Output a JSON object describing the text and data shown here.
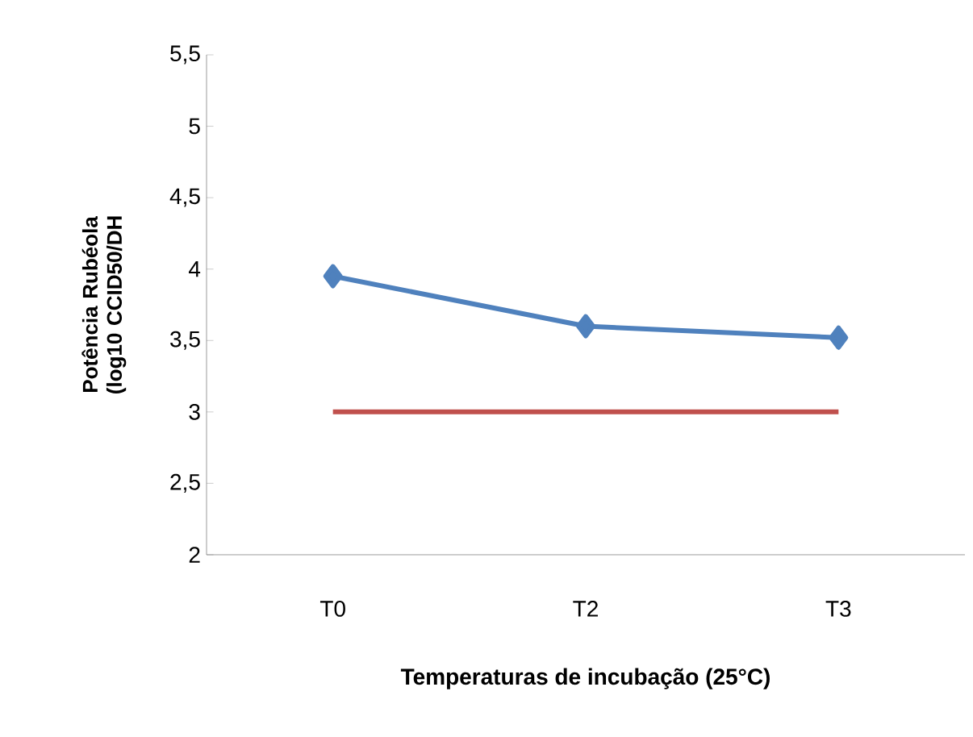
{
  "chart_data": {
    "type": "line",
    "xlabel": "Temperaturas de incubação (25°C)",
    "ylabel": "Potência Rubéola (log10 CCID50/DH",
    "categories": [
      "T0",
      "T2",
      "T3"
    ],
    "series": [
      {
        "color": "#4f81bd",
        "values": [
          3.95,
          3.6,
          3.52
        ],
        "marker": "diamond"
      },
      {
        "color": "#c0504d",
        "values": [
          3,
          3,
          3
        ],
        "marker": "none"
      }
    ],
    "ylim": [
      2,
      5.5
    ],
    "yticks": [
      2,
      {
        "value": 2.5,
        "label": "2,5"
      },
      3,
      {
        "value": 3.5,
        "label": "3,5"
      },
      4,
      {
        "value": 4.5,
        "label": "4,5"
      },
      5,
      {
        "value": 5.5,
        "label": "5,5"
      }
    ],
    "grid": false
  }
}
